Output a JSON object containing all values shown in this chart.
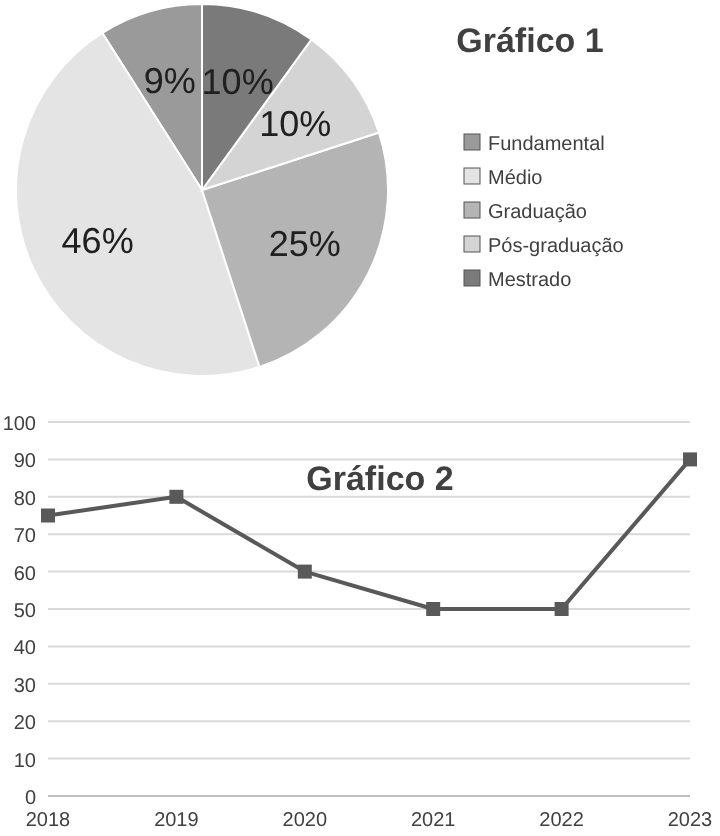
{
  "chart_data": [
    {
      "type": "pie",
      "title": "Gráfico 1",
      "categories": [
        "Fundamental",
        "Médio",
        "Graduação",
        "Pós-graduação",
        "Mestrado"
      ],
      "values": [
        9,
        46,
        25,
        10,
        10
      ],
      "colors": [
        "#9a9a9a",
        "#e4e4e4",
        "#b4b4b4",
        "#d4d4d4",
        "#7a7a7a"
      ],
      "value_labels": [
        "9%",
        "46%",
        "25%",
        "10%",
        "10%"
      ],
      "legend": "right"
    },
    {
      "type": "line",
      "title": "Gráfico 2",
      "categories": [
        "2018",
        "2019",
        "2020",
        "2021",
        "2022",
        "2023"
      ],
      "series": [
        {
          "color": "#595959",
          "values": [
            75,
            80,
            60,
            50,
            50,
            90
          ]
        }
      ],
      "ylim": [
        0,
        100
      ],
      "yticks": [
        0,
        10,
        20,
        30,
        40,
        50,
        60,
        70,
        80,
        90,
        100
      ],
      "grid": "y",
      "marker": "square",
      "line_style": "solid"
    }
  ]
}
